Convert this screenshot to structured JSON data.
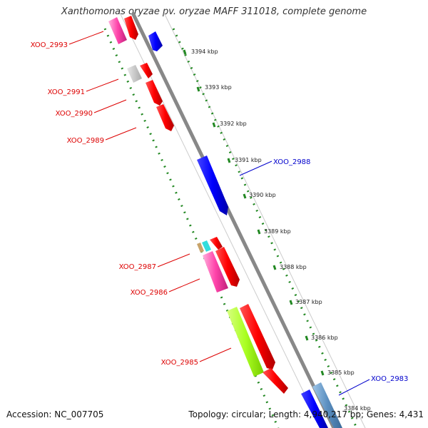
{
  "title": "Xanthomonas oryzae pv. oryzae MAFF 311018, complete genome",
  "accession": "Accession: NC_007705",
  "topology": "Topology: circular; Length: 4,940,217 bp; Genes: 4,431",
  "colors": {
    "label_minus": "#dd0000",
    "label_plus": "#0000cc",
    "ruler": "#228822",
    "backbone": "#888888"
  },
  "scale_ticks": [
    "3394 kbp",
    "3393 kbp",
    "3392 kbp",
    "3391 kbp",
    "3390 kbp",
    "3389 kbp",
    "3388 kbp",
    "3387 kbp",
    "3386 kbp",
    "3385 kbp",
    "3384 kbp"
  ],
  "gene_labels": {
    "XOO_2993": "XOO_2993",
    "XOO_2991": "XOO_2991",
    "XOO_2990": "XOO_2990",
    "XOO_2989": "XOO_2989",
    "XOO_2988": "XOO_2988",
    "XOO_2987": "XOO_2987",
    "XOO_2986": "XOO_2986",
    "XOO_2985": "XOO_2985",
    "XOO_2983": "XOO_2983"
  }
}
